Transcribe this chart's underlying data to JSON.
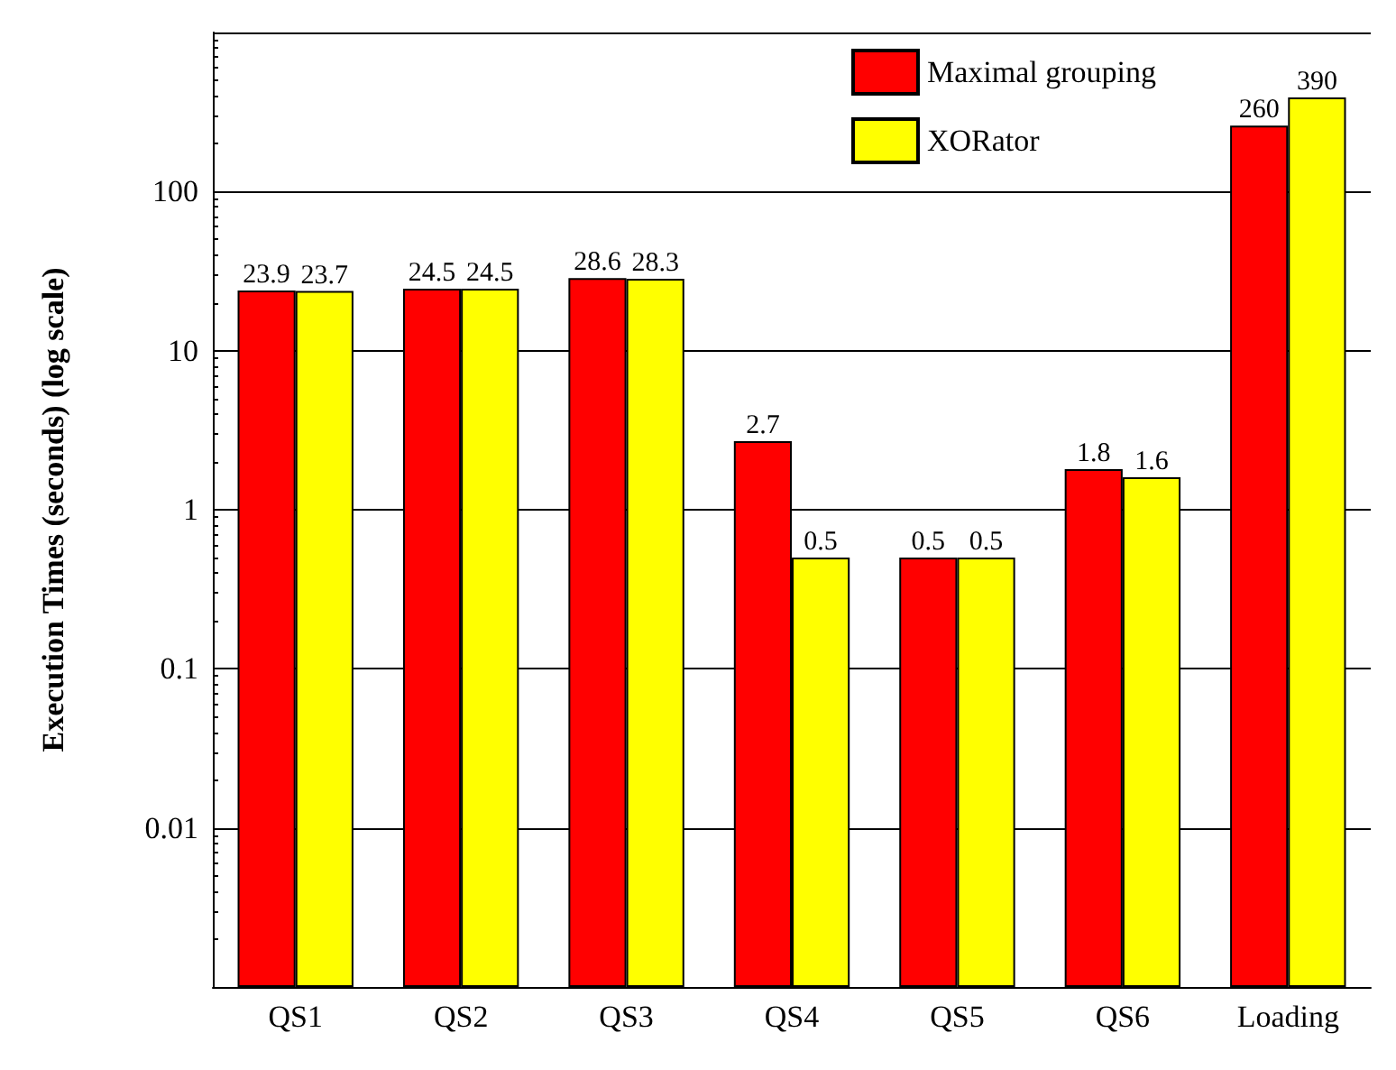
{
  "chart_data": {
    "type": "bar",
    "ylabel": "Execution Times (seconds) (log scale)",
    "categories": [
      "QS1",
      "QS2",
      "QS3",
      "QS4",
      "QS5",
      "QS6",
      "Loading"
    ],
    "series": [
      {
        "name": "Maximal grouping",
        "color": "#ff0000",
        "values": [
          23.9,
          24.5,
          28.6,
          2.7,
          0.5,
          1.8,
          260
        ]
      },
      {
        "name": "XORator",
        "color": "#ffff00",
        "values": [
          23.7,
          24.5,
          28.3,
          0.5,
          0.5,
          1.6,
          390
        ]
      }
    ],
    "log": true,
    "ylim": [
      0.001,
      1000
    ],
    "yticks": [
      {
        "value": 0.001,
        "label": null
      },
      {
        "value": 0.01,
        "label": "0.01"
      },
      {
        "value": 0.1,
        "label": "0.1"
      },
      1,
      10,
      100,
      {
        "value": 1000,
        "label": null
      }
    ],
    "grid": "y",
    "legend": "top right",
    "data_labels": true
  }
}
